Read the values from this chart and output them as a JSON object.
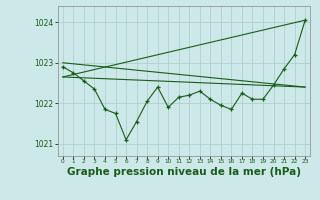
{
  "background_color": "#cce8e8",
  "grid_color": "#aacccc",
  "line_color": "#1a5c1a",
  "xlabel": "Graphe pression niveau de la mer (hPa)",
  "xlabel_fontsize": 7.5,
  "xlim": [
    -0.5,
    23.5
  ],
  "ylim": [
    1020.7,
    1024.4
  ],
  "yticks": [
    1021,
    1022,
    1023,
    1024
  ],
  "xticks": [
    0,
    1,
    2,
    3,
    4,
    5,
    6,
    7,
    8,
    9,
    10,
    11,
    12,
    13,
    14,
    15,
    16,
    17,
    18,
    19,
    20,
    21,
    22,
    23
  ],
  "series": {
    "line1_x": [
      0,
      23
    ],
    "line1_y": [
      1022.65,
      1022.4
    ],
    "line2_x": [
      0,
      23
    ],
    "line2_y": [
      1022.65,
      1024.05
    ],
    "line3_x": [
      0,
      23
    ],
    "line3_y": [
      1023.0,
      1022.4
    ],
    "line4_x": [
      0,
      1,
      2,
      3,
      4,
      5,
      6,
      7,
      8,
      9,
      10,
      11,
      12,
      13,
      14,
      15,
      16,
      17,
      18,
      19,
      20,
      21,
      22,
      23
    ],
    "line4_y": [
      1022.9,
      1022.75,
      1022.55,
      1022.35,
      1021.85,
      1021.75,
      1021.1,
      1021.55,
      1022.05,
      1022.4,
      1021.9,
      1022.15,
      1022.2,
      1022.3,
      1022.1,
      1021.95,
      1021.85,
      1022.25,
      1022.1,
      1022.1,
      1022.45,
      1022.85,
      1023.2,
      1024.05
    ]
  },
  "marker": "+",
  "marker_size": 3.5
}
